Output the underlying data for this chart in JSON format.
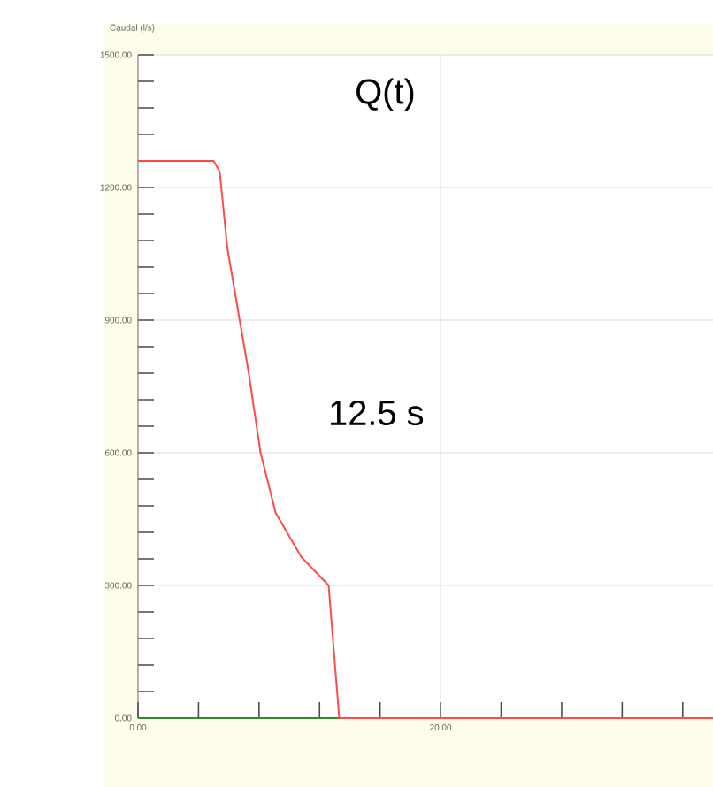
{
  "chart_data": {
    "type": "line",
    "title": "Q(t)",
    "ylabel": "Caudal (l/s)",
    "annotations": [
      "12.5 s"
    ],
    "series": [
      {
        "color": "#2e8b2e",
        "x": [
          0,
          13.3
        ],
        "values": [
          0,
          0
        ]
      },
      {
        "color": "#ff4a4a",
        "x": [
          0,
          5,
          5.4,
          5.9,
          6.7,
          7.3,
          8.1,
          9.1,
          10.8,
          12.6,
          13.3,
          38
        ],
        "values": [
          1260,
          1260,
          1236,
          1064,
          904,
          784,
          600,
          464,
          364,
          300,
          0,
          0
        ]
      }
    ],
    "xlim": [
      0,
      38
    ],
    "xticks": [
      {
        "value": 0,
        "label": "0.00"
      },
      {
        "value": 4,
        "label": null
      },
      {
        "value": 8,
        "label": null
      },
      {
        "value": 12,
        "label": null
      },
      {
        "value": 16,
        "label": null
      },
      {
        "value": 20,
        "label": "20.00"
      },
      {
        "value": 24,
        "label": null
      },
      {
        "value": 28,
        "label": null
      },
      {
        "value": 32,
        "label": null
      },
      {
        "value": 36,
        "label": null
      }
    ],
    "ylim": [
      0,
      1500
    ],
    "yticks": [
      {
        "value": 0,
        "label": "0.00"
      },
      {
        "value": 60,
        "label": null
      },
      {
        "value": 120,
        "label": null
      },
      {
        "value": 180,
        "label": null
      },
      {
        "value": 240,
        "label": null
      },
      {
        "value": 300,
        "label": "300.00"
      },
      {
        "value": 360,
        "label": null
      },
      {
        "value": 420,
        "label": null
      },
      {
        "value": 480,
        "label": null
      },
      {
        "value": 540,
        "label": null
      },
      {
        "value": 600,
        "label": "600.00"
      },
      {
        "value": 660,
        "label": null
      },
      {
        "value": 720,
        "label": null
      },
      {
        "value": 780,
        "label": null
      },
      {
        "value": 840,
        "label": null
      },
      {
        "value": 900,
        "label": "900.00"
      },
      {
        "value": 960,
        "label": null
      },
      {
        "value": 1020,
        "label": null
      },
      {
        "value": 1080,
        "label": null
      },
      {
        "value": 1140,
        "label": null
      },
      {
        "value": 1200,
        "label": "1200.00"
      },
      {
        "value": 1260,
        "label": null
      },
      {
        "value": 1320,
        "label": null
      },
      {
        "value": 1380,
        "label": null
      },
      {
        "value": 1440,
        "label": null
      },
      {
        "value": 1500,
        "label": "1500.00"
      }
    ],
    "grid": true,
    "marker": "none",
    "line_style": "solid"
  }
}
